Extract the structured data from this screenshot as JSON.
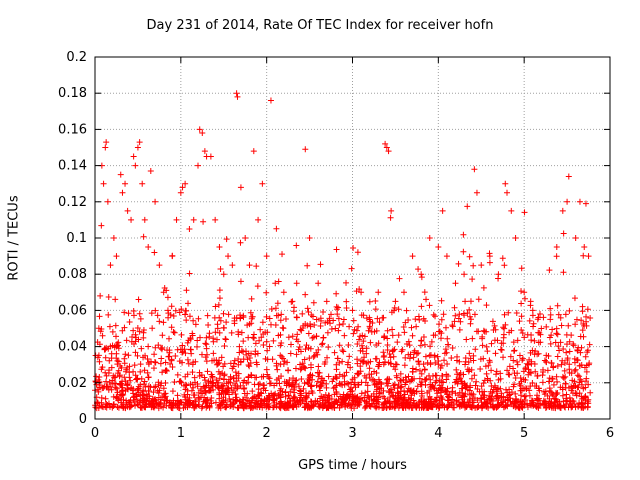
{
  "chart_data": {
    "type": "scatter",
    "title": "Day 231 of 2014, Rate Of TEC Index for receiver hofn",
    "xlabel": "GPS time / hours",
    "ylabel": "ROTI / TECUs",
    "xlim": [
      0,
      6
    ],
    "ylim": [
      0,
      0.2
    ],
    "x_ticks": [
      "0",
      "1",
      "2",
      "3",
      "4",
      "5",
      "6"
    ],
    "y_ticks": [
      "0",
      "0.02",
      "0.04",
      "0.06",
      "0.08",
      "0.1",
      "0.12",
      "0.14",
      "0.16",
      "0.18",
      "0.2"
    ],
    "grid": true,
    "marker": "+",
    "color": "#ff0000",
    "series": [
      {
        "name": "ROTI",
        "points": [
          [
            0.02,
            0.012
          ],
          [
            0.05,
            0.02
          ],
          [
            0.06,
            0.068
          ],
          [
            0.08,
            0.14
          ],
          [
            0.1,
            0.13
          ],
          [
            0.12,
            0.15
          ],
          [
            0.13,
            0.153
          ],
          [
            0.15,
            0.12
          ],
          [
            0.18,
            0.085
          ],
          [
            0.22,
            0.1
          ],
          [
            0.25,
            0.09
          ],
          [
            0.3,
            0.135
          ],
          [
            0.32,
            0.125
          ],
          [
            0.35,
            0.13
          ],
          [
            0.38,
            0.115
          ],
          [
            0.42,
            0.11
          ],
          [
            0.45,
            0.145
          ],
          [
            0.47,
            0.14
          ],
          [
            0.5,
            0.15
          ],
          [
            0.52,
            0.153
          ],
          [
            0.55,
            0.13
          ],
          [
            0.58,
            0.11
          ],
          [
            0.62,
            0.095
          ],
          [
            0.65,
            0.137
          ],
          [
            0.7,
            0.12
          ],
          [
            0.75,
            0.085
          ],
          [
            0.8,
            0.07
          ],
          [
            0.85,
            0.06
          ],
          [
            0.9,
            0.09
          ],
          [
            0.95,
            0.11
          ],
          [
            1.0,
            0.125
          ],
          [
            1.02,
            0.128
          ],
          [
            1.05,
            0.13
          ],
          [
            1.1,
            0.105
          ],
          [
            1.15,
            0.11
          ],
          [
            1.2,
            0.14
          ],
          [
            1.22,
            0.16
          ],
          [
            1.25,
            0.158
          ],
          [
            1.28,
            0.148
          ],
          [
            1.3,
            0.145
          ],
          [
            1.35,
            0.145
          ],
          [
            1.4,
            0.11
          ],
          [
            1.45,
            0.095
          ],
          [
            1.5,
            0.08
          ],
          [
            1.55,
            0.09
          ],
          [
            1.6,
            0.085
          ],
          [
            1.65,
            0.18
          ],
          [
            1.66,
            0.178
          ],
          [
            1.7,
            0.128
          ],
          [
            1.75,
            0.1
          ],
          [
            1.8,
            0.085
          ],
          [
            1.85,
            0.148
          ],
          [
            1.9,
            0.11
          ],
          [
            1.95,
            0.13
          ],
          [
            2.0,
            0.09
          ],
          [
            2.05,
            0.176
          ],
          [
            2.1,
            0.075
          ],
          [
            2.2,
            0.07
          ],
          [
            2.3,
            0.065
          ],
          [
            2.35,
            0.075
          ],
          [
            2.45,
            0.149
          ],
          [
            2.5,
            0.1
          ],
          [
            2.6,
            0.075
          ],
          [
            2.7,
            0.065
          ],
          [
            2.8,
            0.05
          ],
          [
            2.9,
            0.055
          ],
          [
            3.0,
            0.06
          ],
          [
            3.1,
            0.07
          ],
          [
            3.2,
            0.055
          ],
          [
            3.3,
            0.07
          ],
          [
            3.38,
            0.152
          ],
          [
            3.4,
            0.15
          ],
          [
            3.42,
            0.148
          ],
          [
            3.45,
            0.115
          ],
          [
            3.5,
            0.065
          ],
          [
            3.6,
            0.07
          ],
          [
            3.7,
            0.09
          ],
          [
            3.8,
            0.08
          ],
          [
            3.9,
            0.1
          ],
          [
            4.0,
            0.095
          ],
          [
            4.05,
            0.115
          ],
          [
            4.1,
            0.09
          ],
          [
            4.2,
            0.075
          ],
          [
            4.3,
            0.08
          ],
          [
            4.42,
            0.138
          ],
          [
            4.45,
            0.125
          ],
          [
            4.5,
            0.085
          ],
          [
            4.6,
            0.09
          ],
          [
            4.7,
            0.08
          ],
          [
            4.78,
            0.13
          ],
          [
            4.8,
            0.125
          ],
          [
            4.85,
            0.115
          ],
          [
            4.9,
            0.1
          ],
          [
            5.0,
            0.07
          ],
          [
            5.1,
            0.06
          ],
          [
            5.2,
            0.05
          ],
          [
            5.3,
            0.045
          ],
          [
            5.38,
            0.095
          ],
          [
            5.45,
            0.115
          ],
          [
            5.5,
            0.12
          ],
          [
            5.52,
            0.134
          ],
          [
            5.6,
            0.1
          ],
          [
            5.65,
            0.12
          ],
          [
            5.7,
            0.095
          ],
          [
            5.72,
            0.119
          ],
          [
            5.75,
            0.09
          ]
        ]
      }
    ]
  }
}
